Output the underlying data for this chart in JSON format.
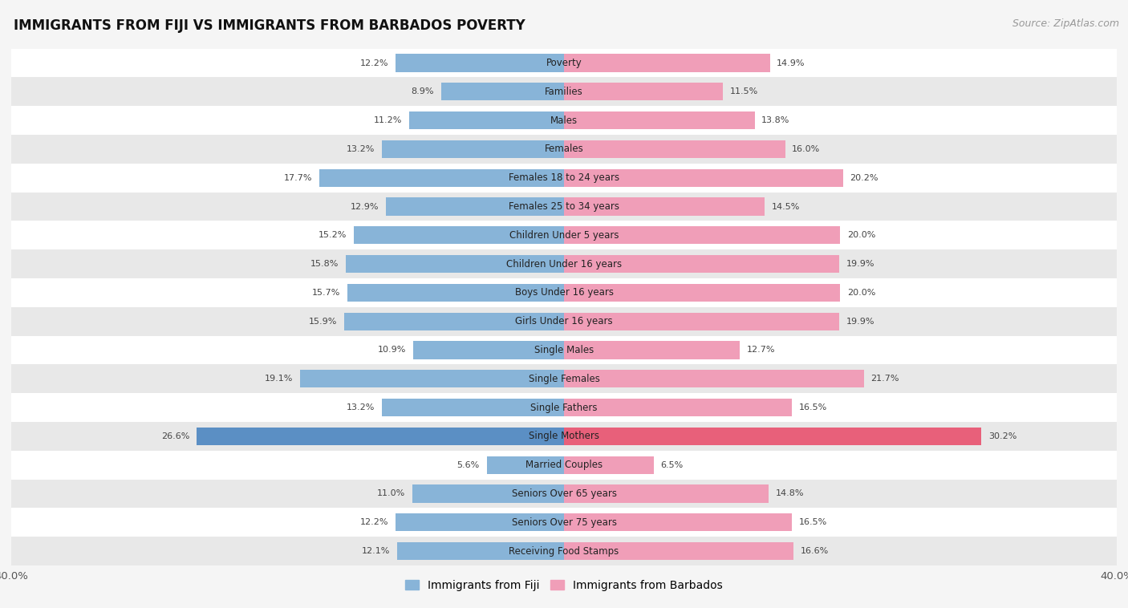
{
  "title": "IMMIGRANTS FROM FIJI VS IMMIGRANTS FROM BARBADOS POVERTY",
  "source": "Source: ZipAtlas.com",
  "categories": [
    "Poverty",
    "Families",
    "Males",
    "Females",
    "Females 18 to 24 years",
    "Females 25 to 34 years",
    "Children Under 5 years",
    "Children Under 16 years",
    "Boys Under 16 years",
    "Girls Under 16 years",
    "Single Males",
    "Single Females",
    "Single Fathers",
    "Single Mothers",
    "Married Couples",
    "Seniors Over 65 years",
    "Seniors Over 75 years",
    "Receiving Food Stamps"
  ],
  "fiji_values": [
    12.2,
    8.9,
    11.2,
    13.2,
    17.7,
    12.9,
    15.2,
    15.8,
    15.7,
    15.9,
    10.9,
    19.1,
    13.2,
    26.6,
    5.6,
    11.0,
    12.2,
    12.1
  ],
  "barbados_values": [
    14.9,
    11.5,
    13.8,
    16.0,
    20.2,
    14.5,
    20.0,
    19.9,
    20.0,
    19.9,
    12.7,
    21.7,
    16.5,
    30.2,
    6.5,
    14.8,
    16.5,
    16.6
  ],
  "fiji_color": "#88b4d8",
  "barbados_color": "#f09eb8",
  "fiji_highlight_color": "#5b8fc4",
  "barbados_highlight_color": "#e8607a",
  "background_color": "#f5f5f5",
  "row_white_color": "#ffffff",
  "row_gray_color": "#e8e8e8",
  "xlim": 40.0,
  "bar_height": 0.62,
  "legend_fiji": "Immigrants from Fiji",
  "legend_barbados": "Immigrants from Barbados",
  "title_fontsize": 12,
  "source_fontsize": 9,
  "label_fontsize": 8.5,
  "value_fontsize": 8.0
}
